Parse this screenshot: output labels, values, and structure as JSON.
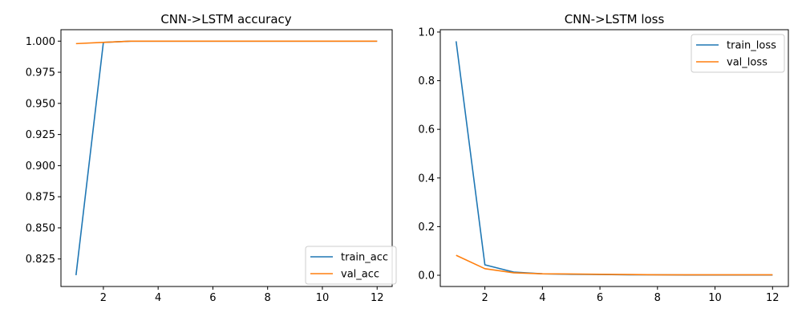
{
  "chart_data": [
    {
      "type": "line",
      "title": "CNN->LSTM accuracy",
      "xlabel": "",
      "ylabel": "",
      "xlim": [
        0.45,
        12.55
      ],
      "ylim": [
        0.8029,
        1.0092
      ],
      "x_ticks": [
        2,
        4,
        6,
        8,
        10,
        12
      ],
      "y_ticks": [
        0.825,
        0.85,
        0.875,
        0.9,
        0.925,
        0.95,
        0.975,
        1.0
      ],
      "y_tick_labels": [
        "0.825",
        "0.850",
        "0.875",
        "0.900",
        "0.925",
        "0.950",
        "0.975",
        "1.000"
      ],
      "legend_position": "lower-right",
      "grid": false,
      "x": [
        1,
        2,
        3,
        4,
        5,
        6,
        7,
        8,
        9,
        10,
        11,
        12
      ],
      "series": [
        {
          "name": "train_acc",
          "color": "#1f77b4",
          "values": [
            0.812,
            0.999,
            1.0,
            1.0,
            1.0,
            1.0,
            1.0,
            1.0,
            1.0,
            1.0,
            1.0,
            1.0
          ]
        },
        {
          "name": "val_acc",
          "color": "#ff7f0e",
          "values": [
            0.998,
            0.999,
            1.0,
            1.0,
            1.0,
            1.0,
            1.0,
            1.0,
            1.0,
            1.0,
            1.0,
            1.0
          ]
        }
      ]
    },
    {
      "type": "line",
      "title": "CNN->LSTM loss",
      "xlabel": "",
      "ylabel": "",
      "xlim": [
        0.45,
        12.55
      ],
      "ylim": [
        -0.0462,
        1.0097
      ],
      "x_ticks": [
        2,
        4,
        6,
        8,
        10,
        12
      ],
      "y_ticks": [
        0.0,
        0.2,
        0.4,
        0.6,
        0.8,
        1.0
      ],
      "y_tick_labels": [
        "0.0",
        "0.2",
        "0.4",
        "0.6",
        "0.8",
        "1.0"
      ],
      "legend_position": "upper-right",
      "grid": false,
      "x": [
        1,
        2,
        3,
        4,
        5,
        6,
        7,
        8,
        9,
        10,
        11,
        12
      ],
      "series": [
        {
          "name": "train_loss",
          "color": "#1f77b4",
          "values": [
            0.962,
            0.043,
            0.013,
            0.006,
            0.004,
            0.003,
            0.002,
            0.002,
            0.001,
            0.001,
            0.001,
            0.001
          ]
        },
        {
          "name": "val_loss",
          "color": "#ff7f0e",
          "values": [
            0.082,
            0.027,
            0.01,
            0.006,
            0.005,
            0.004,
            0.003,
            0.002,
            0.002,
            0.002,
            0.002,
            0.002
          ]
        }
      ]
    }
  ]
}
